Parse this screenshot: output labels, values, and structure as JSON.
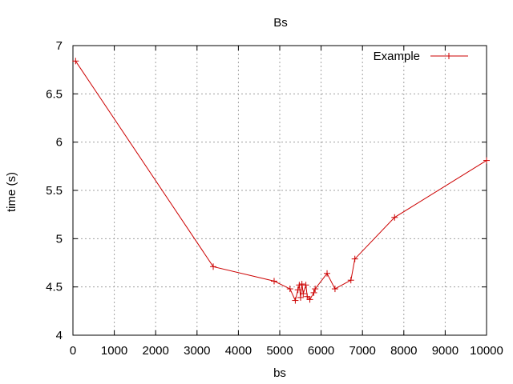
{
  "chart_data": {
    "type": "line",
    "title": "Bs",
    "xlabel": "bs",
    "ylabel": "time (s)",
    "xlim": [
      0,
      10000
    ],
    "ylim": [
      4,
      7
    ],
    "xticks": [
      0,
      1000,
      2000,
      3000,
      4000,
      5000,
      6000,
      7000,
      8000,
      9000,
      10000
    ],
    "yticks": [
      4,
      4.5,
      5,
      5.5,
      6,
      6.5,
      7
    ],
    "grid": true,
    "legend_position": "top-right",
    "series": [
      {
        "name": "Example",
        "color": "#cc0000",
        "marker": "plus",
        "x": [
          64,
          3392,
          4864,
          5248,
          5376,
          5440,
          5472,
          5504,
          5536,
          5568,
          5632,
          5664,
          5728,
          5824,
          5856,
          6144,
          6336,
          6720,
          6816,
          7776,
          10000
        ],
        "y": [
          6.84,
          4.71,
          4.56,
          4.48,
          4.36,
          4.47,
          4.52,
          4.39,
          4.53,
          4.43,
          4.52,
          4.4,
          4.37,
          4.44,
          4.48,
          4.64,
          4.48,
          4.57,
          4.79,
          5.22,
          5.81
        ]
      }
    ]
  }
}
